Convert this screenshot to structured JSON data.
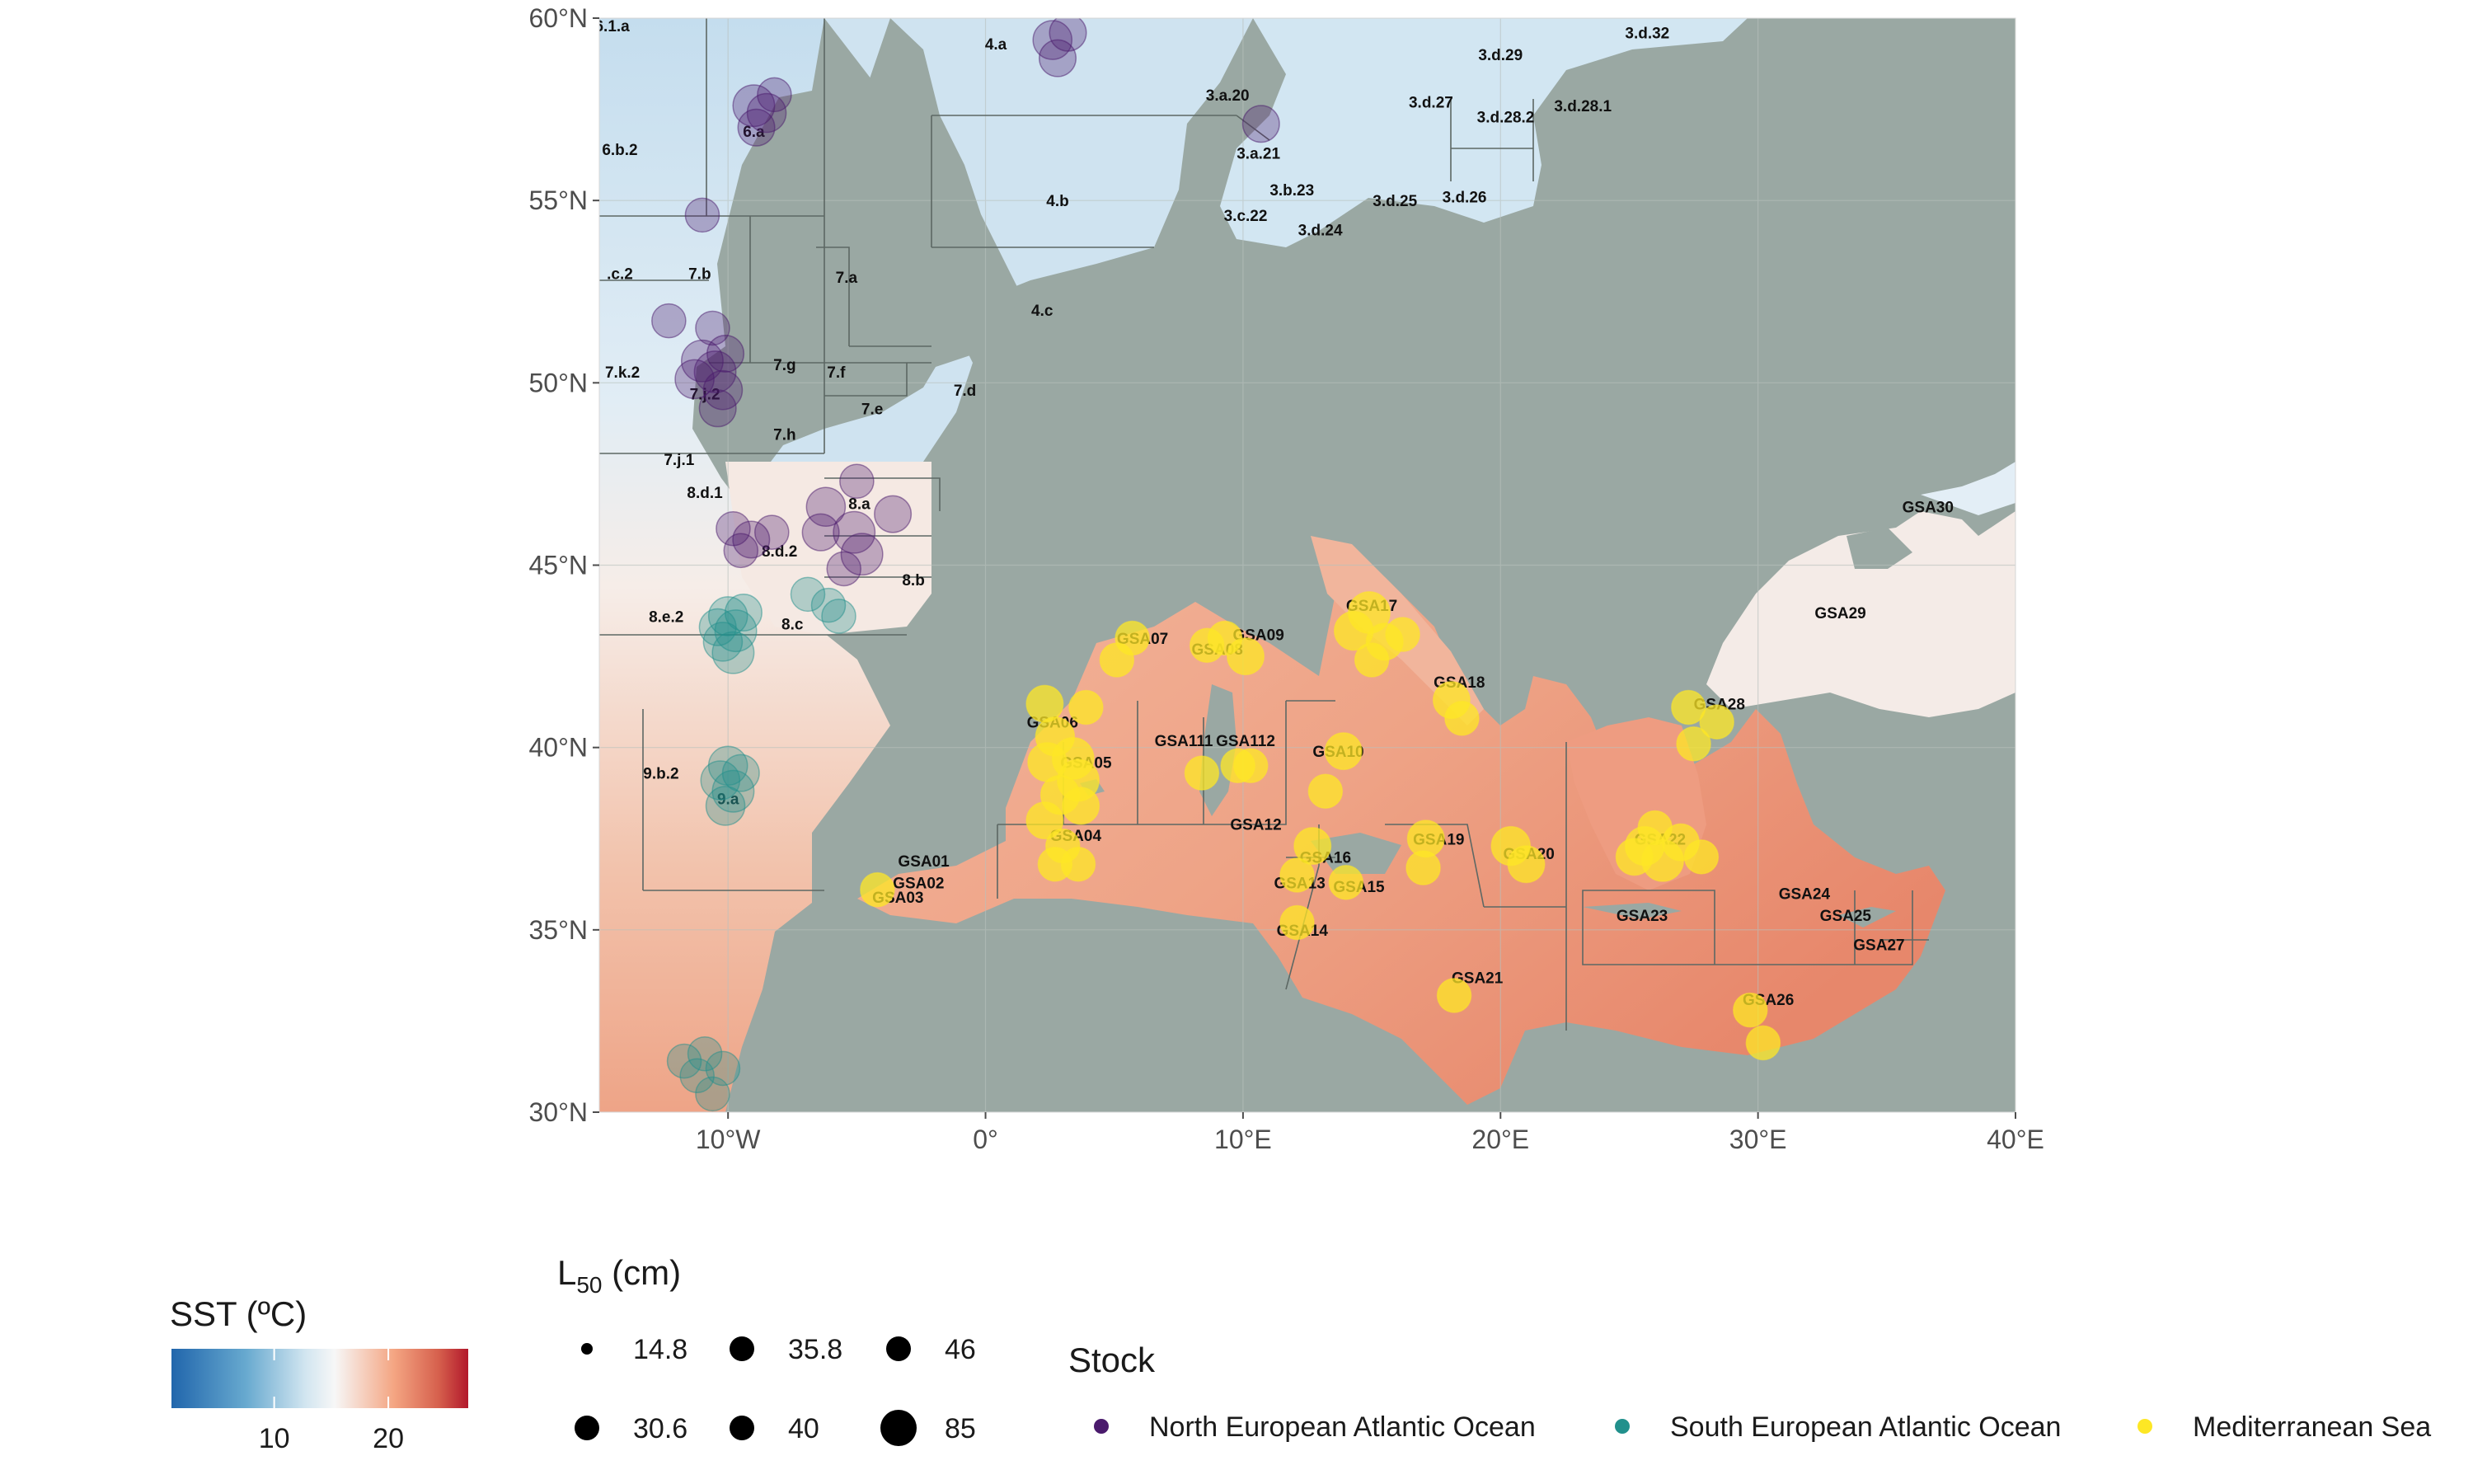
{
  "map": {
    "axes": {
      "lon_ticks": [
        {
          "value": -10,
          "label": "10°W"
        },
        {
          "value": 0,
          "label": "0°"
        },
        {
          "value": 10,
          "label": "10°E"
        },
        {
          "value": 20,
          "label": "20°E"
        },
        {
          "value": 30,
          "label": "30°E"
        },
        {
          "value": 40,
          "label": "40°E"
        }
      ],
      "lat_ticks": [
        {
          "value": 30,
          "label": "30°N"
        },
        {
          "value": 35,
          "label": "35°N"
        },
        {
          "value": 40,
          "label": "40°N"
        },
        {
          "value": 45,
          "label": "45°N"
        },
        {
          "value": 50,
          "label": "50°N"
        },
        {
          "value": 55,
          "label": "55°N"
        },
        {
          "value": 60,
          "label": "60°N"
        }
      ],
      "lon_range": [
        -15,
        40
      ],
      "lat_range": [
        30,
        60
      ]
    },
    "colors": {
      "land": "#9aa8a3",
      "border": "#606b67",
      "cold_sea": "#c9e0ef",
      "mid_sea": "#f4eeea",
      "warm_sea": "#eb9478",
      "north_atlantic": "#4a1a6c",
      "south_atlantic": "#21908c",
      "mediterranean": "#fde725"
    },
    "area_labels": [
      {
        "id": "a1",
        "text": "3.a.20",
        "lon": 9.4,
        "lat": 57.9
      },
      {
        "id": "a2",
        "text": "3.a.21",
        "lon": 10.6,
        "lat": 56.3
      },
      {
        "id": "a3",
        "text": "3.b.23",
        "lon": 11.9,
        "lat": 55.3
      },
      {
        "id": "a4",
        "text": "3.c.22",
        "lon": 10.1,
        "lat": 54.6
      },
      {
        "id": "a5",
        "text": "3.d.24",
        "lon": 13.0,
        "lat": 54.2
      },
      {
        "id": "a6",
        "text": "3.d.25",
        "lon": 15.9,
        "lat": 55.0
      },
      {
        "id": "a7",
        "text": "3.d.26",
        "lon": 18.6,
        "lat": 55.1
      },
      {
        "id": "a8",
        "text": "3.d.27",
        "lon": 17.3,
        "lat": 57.7
      },
      {
        "id": "a9",
        "text": "3.d.28.2",
        "lon": 20.2,
        "lat": 57.3
      },
      {
        "id": "a10",
        "text": "3.d.28.1",
        "lon": 23.2,
        "lat": 57.6
      },
      {
        "id": "a11",
        "text": "3.d.29",
        "lon": 20.0,
        "lat": 59.0
      },
      {
        "id": "a12",
        "text": "3.d.32",
        "lon": 25.7,
        "lat": 59.6
      },
      {
        "id": "a13",
        "text": "4.a",
        "lon": 0.4,
        "lat": 59.3
      },
      {
        "id": "a14",
        "text": "4.b",
        "lon": 2.8,
        "lat": 55.0
      },
      {
        "id": "a15",
        "text": "4.c",
        "lon": 2.2,
        "lat": 52.0
      },
      {
        "id": "a16",
        "text": "6.a",
        "lon": -9.0,
        "lat": 56.9
      },
      {
        "id": "a17",
        "text": "6.b.2",
        "lon": -14.2,
        "lat": 56.4
      },
      {
        "id": "a18",
        "text": "6.1.a",
        "lon": -14.5,
        "lat": 59.8
      },
      {
        "id": "a19",
        "text": ".c.2",
        "lon": -14.2,
        "lat": 53.0
      },
      {
        "id": "a20",
        "text": "7.b",
        "lon": -11.1,
        "lat": 53.0
      },
      {
        "id": "a21",
        "text": "7.a",
        "lon": -5.4,
        "lat": 52.9
      },
      {
        "id": "a22",
        "text": "7.g",
        "lon": -7.8,
        "lat": 50.5
      },
      {
        "id": "a23",
        "text": "7.f",
        "lon": -5.8,
        "lat": 50.3
      },
      {
        "id": "a24",
        "text": "7.e",
        "lon": -4.4,
        "lat": 49.3
      },
      {
        "id": "a25",
        "text": "7.d",
        "lon": -0.8,
        "lat": 49.8
      },
      {
        "id": "a26",
        "text": "7.k.2",
        "lon": -14.1,
        "lat": 50.3
      },
      {
        "id": "a27",
        "text": "7.j.2",
        "lon": -10.9,
        "lat": 49.7
      },
      {
        "id": "a28",
        "text": "7.h",
        "lon": -7.8,
        "lat": 48.6
      },
      {
        "id": "a29",
        "text": "7.j.1",
        "lon": -11.9,
        "lat": 47.9
      },
      {
        "id": "a30",
        "text": "8.d.1",
        "lon": -10.9,
        "lat": 47.0
      },
      {
        "id": "a31",
        "text": "8.a",
        "lon": -4.9,
        "lat": 46.7
      },
      {
        "id": "a32",
        "text": "8.d.2",
        "lon": -8.0,
        "lat": 45.4
      },
      {
        "id": "a33",
        "text": "8.b",
        "lon": -2.8,
        "lat": 44.6
      },
      {
        "id": "a34",
        "text": "8.c",
        "lon": -7.5,
        "lat": 43.4
      },
      {
        "id": "a35",
        "text": "8.e.2",
        "lon": -12.4,
        "lat": 43.6
      },
      {
        "id": "a36",
        "text": "9.b.2",
        "lon": -12.6,
        "lat": 39.3
      },
      {
        "id": "a37",
        "text": "9.a",
        "lon": -10.0,
        "lat": 38.6
      },
      {
        "id": "a38",
        "text": "GSA01",
        "lon": -2.4,
        "lat": 36.9
      },
      {
        "id": "a39",
        "text": "GSA02",
        "lon": -2.6,
        "lat": 36.3
      },
      {
        "id": "a40",
        "text": "GSA03",
        "lon": -3.4,
        "lat": 35.9
      },
      {
        "id": "a41",
        "text": "GSA04",
        "lon": 3.5,
        "lat": 37.6
      },
      {
        "id": "a42",
        "text": "GSA05",
        "lon": 3.9,
        "lat": 39.6
      },
      {
        "id": "a43",
        "text": "GSA06",
        "lon": 2.6,
        "lat": 40.7
      },
      {
        "id": "a44",
        "text": "GSA07",
        "lon": 6.1,
        "lat": 43.0
      },
      {
        "id": "a45",
        "text": "GSA08",
        "lon": 9.0,
        "lat": 42.7
      },
      {
        "id": "a46",
        "text": "GSA09",
        "lon": 10.6,
        "lat": 43.1
      },
      {
        "id": "a47",
        "text": "GSA10",
        "lon": 13.7,
        "lat": 39.9
      },
      {
        "id": "a48",
        "text": "GSA111",
        "lon": 7.7,
        "lat": 40.2
      },
      {
        "id": "a49",
        "text": "GSA112",
        "lon": 10.1,
        "lat": 40.2
      },
      {
        "id": "a50",
        "text": "GSA12",
        "lon": 10.5,
        "lat": 37.9
      },
      {
        "id": "a51",
        "text": "GSA13",
        "lon": 12.2,
        "lat": 36.3
      },
      {
        "id": "a52",
        "text": "GSA14",
        "lon": 12.3,
        "lat": 35.0
      },
      {
        "id": "a53",
        "text": "GSA15",
        "lon": 14.5,
        "lat": 36.2
      },
      {
        "id": "a54",
        "text": "GSA16",
        "lon": 13.2,
        "lat": 37.0
      },
      {
        "id": "a55",
        "text": "GSA17",
        "lon": 15.0,
        "lat": 43.9
      },
      {
        "id": "a56",
        "text": "GSA18",
        "lon": 18.4,
        "lat": 41.8
      },
      {
        "id": "a57",
        "text": "GSA19",
        "lon": 17.6,
        "lat": 37.5
      },
      {
        "id": "a58",
        "text": "GSA20",
        "lon": 21.1,
        "lat": 37.1
      },
      {
        "id": "a59",
        "text": "GSA21",
        "lon": 19.1,
        "lat": 33.7
      },
      {
        "id": "a60",
        "text": "GSA22",
        "lon": 26.2,
        "lat": 37.5
      },
      {
        "id": "a61",
        "text": "GSA23",
        "lon": 25.5,
        "lat": 35.4
      },
      {
        "id": "a62",
        "text": "GSA24",
        "lon": 31.8,
        "lat": 36.0
      },
      {
        "id": "a63",
        "text": "GSA25",
        "lon": 33.4,
        "lat": 35.4
      },
      {
        "id": "a64",
        "text": "GSA26",
        "lon": 30.4,
        "lat": 33.1
      },
      {
        "id": "a65",
        "text": "GSA27",
        "lon": 34.7,
        "lat": 34.6
      },
      {
        "id": "a66",
        "text": "GSA28",
        "lon": 28.5,
        "lat": 41.2
      },
      {
        "id": "a67",
        "text": "GSA29",
        "lon": 33.2,
        "lat": 43.7
      },
      {
        "id": "a68",
        "text": "GSA30",
        "lon": 36.6,
        "lat": 46.6
      }
    ],
    "stock_points": [
      {
        "stock": "north",
        "lon": -9.0,
        "lat": 57.6,
        "size": 46
      },
      {
        "stock": "north",
        "lon": -8.5,
        "lat": 57.4,
        "size": 40
      },
      {
        "stock": "north",
        "lon": -8.9,
        "lat": 57.0,
        "size": 35.8
      },
      {
        "stock": "north",
        "lon": -8.2,
        "lat": 57.9,
        "size": 30.6
      },
      {
        "stock": "north",
        "lon": 2.6,
        "lat": 59.4,
        "size": 40
      },
      {
        "stock": "north",
        "lon": 2.8,
        "lat": 58.9,
        "size": 35.8
      },
      {
        "stock": "north",
        "lon": 3.2,
        "lat": 59.6,
        "size": 35.8
      },
      {
        "stock": "north",
        "lon": 10.7,
        "lat": 57.1,
        "size": 35.8
      },
      {
        "stock": "north",
        "lon": -11.0,
        "lat": 54.6,
        "size": 30.6
      },
      {
        "stock": "north",
        "lon": -12.3,
        "lat": 51.7,
        "size": 30.6
      },
      {
        "stock": "north",
        "lon": -10.6,
        "lat": 51.5,
        "size": 30.6
      },
      {
        "stock": "north",
        "lon": -11.0,
        "lat": 50.6,
        "size": 46
      },
      {
        "stock": "north",
        "lon": -10.5,
        "lat": 50.3,
        "size": 46
      },
      {
        "stock": "north",
        "lon": -11.3,
        "lat": 50.1,
        "size": 40
      },
      {
        "stock": "north",
        "lon": -10.2,
        "lat": 49.8,
        "size": 40
      },
      {
        "stock": "north",
        "lon": -10.1,
        "lat": 50.8,
        "size": 35.8
      },
      {
        "stock": "north",
        "lon": -10.4,
        "lat": 49.3,
        "size": 35.8
      },
      {
        "stock": "north",
        "lon": -6.2,
        "lat": 46.6,
        "size": 40
      },
      {
        "stock": "north",
        "lon": -5.1,
        "lat": 45.9,
        "size": 46
      },
      {
        "stock": "north",
        "lon": -4.8,
        "lat": 45.3,
        "size": 46
      },
      {
        "stock": "north",
        "lon": -6.4,
        "lat": 45.9,
        "size": 35.8
      },
      {
        "stock": "north",
        "lon": -5.0,
        "lat": 47.3,
        "size": 30.6
      },
      {
        "stock": "north",
        "lon": -3.6,
        "lat": 46.4,
        "size": 35.8
      },
      {
        "stock": "north",
        "lon": -5.5,
        "lat": 44.9,
        "size": 30.6
      },
      {
        "stock": "north",
        "lon": -9.8,
        "lat": 46.0,
        "size": 30.6
      },
      {
        "stock": "north",
        "lon": -9.1,
        "lat": 45.7,
        "size": 35.8
      },
      {
        "stock": "north",
        "lon": -9.5,
        "lat": 45.4,
        "size": 30.6
      },
      {
        "stock": "north",
        "lon": -8.3,
        "lat": 45.9,
        "size": 30.6
      },
      {
        "stock": "south",
        "lon": -10.0,
        "lat": 43.6,
        "size": 40
      },
      {
        "stock": "south",
        "lon": -9.7,
        "lat": 43.2,
        "size": 46
      },
      {
        "stock": "south",
        "lon": -10.2,
        "lat": 42.9,
        "size": 40
      },
      {
        "stock": "south",
        "lon": -9.8,
        "lat": 42.6,
        "size": 46
      },
      {
        "stock": "south",
        "lon": -10.4,
        "lat": 43.3,
        "size": 35.8
      },
      {
        "stock": "south",
        "lon": -9.4,
        "lat": 43.7,
        "size": 35.8
      },
      {
        "stock": "south",
        "lon": -6.9,
        "lat": 44.2,
        "size": 30.6
      },
      {
        "stock": "south",
        "lon": -6.1,
        "lat": 43.9,
        "size": 30.6
      },
      {
        "stock": "south",
        "lon": -5.7,
        "lat": 43.6,
        "size": 30.6
      },
      {
        "stock": "south",
        "lon": -10.0,
        "lat": 39.5,
        "size": 40
      },
      {
        "stock": "south",
        "lon": -10.3,
        "lat": 39.1,
        "size": 40
      },
      {
        "stock": "south",
        "lon": -9.8,
        "lat": 38.8,
        "size": 46
      },
      {
        "stock": "south",
        "lon": -10.1,
        "lat": 38.4,
        "size": 40
      },
      {
        "stock": "south",
        "lon": -9.5,
        "lat": 39.3,
        "size": 35.8
      },
      {
        "stock": "south",
        "lon": -11.7,
        "lat": 31.4,
        "size": 30.6
      },
      {
        "stock": "south",
        "lon": -10.9,
        "lat": 31.6,
        "size": 30.6
      },
      {
        "stock": "south",
        "lon": -11.2,
        "lat": 31.0,
        "size": 30.6
      },
      {
        "stock": "south",
        "lon": -10.6,
        "lat": 30.5,
        "size": 30.6
      },
      {
        "stock": "south",
        "lon": -10.2,
        "lat": 31.2,
        "size": 30.6
      },
      {
        "stock": "med",
        "lon": 2.7,
        "lat": 40.3,
        "size": 40
      },
      {
        "stock": "med",
        "lon": 3.4,
        "lat": 39.7,
        "size": 46
      },
      {
        "stock": "med",
        "lon": 2.4,
        "lat": 39.6,
        "size": 40
      },
      {
        "stock": "med",
        "lon": 3.6,
        "lat": 39.1,
        "size": 46
      },
      {
        "stock": "med",
        "lon": 2.9,
        "lat": 38.7,
        "size": 40
      },
      {
        "stock": "med",
        "lon": 3.7,
        "lat": 38.4,
        "size": 35.8
      },
      {
        "stock": "med",
        "lon": 2.3,
        "lat": 41.2,
        "size": 35.8
      },
      {
        "stock": "med",
        "lon": 3.9,
        "lat": 41.1,
        "size": 30.6
      },
      {
        "stock": "med",
        "lon": 2.3,
        "lat": 38.0,
        "size": 35.8
      },
      {
        "stock": "med",
        "lon": 3.0,
        "lat": 37.3,
        "size": 30.6
      },
      {
        "stock": "med",
        "lon": 3.6,
        "lat": 36.8,
        "size": 30.6
      },
      {
        "stock": "med",
        "lon": 2.7,
        "lat": 36.8,
        "size": 30.6
      },
      {
        "stock": "med",
        "lon": 5.1,
        "lat": 42.4,
        "size": 30.6
      },
      {
        "stock": "med",
        "lon": 5.7,
        "lat": 43.0,
        "size": 30.6
      },
      {
        "stock": "med",
        "lon": 9.3,
        "lat": 43.0,
        "size": 30.6
      },
      {
        "stock": "med",
        "lon": 10.1,
        "lat": 42.5,
        "size": 35.8
      },
      {
        "stock": "med",
        "lon": 8.6,
        "lat": 42.8,
        "size": 30.6
      },
      {
        "stock": "med",
        "lon": 14.9,
        "lat": 43.7,
        "size": 46
      },
      {
        "stock": "med",
        "lon": 14.3,
        "lat": 43.2,
        "size": 40
      },
      {
        "stock": "med",
        "lon": 15.5,
        "lat": 42.9,
        "size": 35.8
      },
      {
        "stock": "med",
        "lon": 16.2,
        "lat": 43.1,
        "size": 30.6
      },
      {
        "stock": "med",
        "lon": 15.0,
        "lat": 42.4,
        "size": 30.6
      },
      {
        "stock": "med",
        "lon": 18.1,
        "lat": 41.3,
        "size": 35.8
      },
      {
        "stock": "med",
        "lon": 18.5,
        "lat": 40.8,
        "size": 30.6
      },
      {
        "stock": "med",
        "lon": 13.9,
        "lat": 39.9,
        "size": 35.8
      },
      {
        "stock": "med",
        "lon": 13.2,
        "lat": 38.8,
        "size": 30.6
      },
      {
        "stock": "med",
        "lon": 8.4,
        "lat": 39.3,
        "size": 30.6
      },
      {
        "stock": "med",
        "lon": 9.8,
        "lat": 39.5,
        "size": 30.6
      },
      {
        "stock": "med",
        "lon": 10.3,
        "lat": 39.5,
        "size": 30.6
      },
      {
        "stock": "med",
        "lon": 12.7,
        "lat": 37.3,
        "size": 35.8
      },
      {
        "stock": "med",
        "lon": 12.1,
        "lat": 36.5,
        "size": 30.6
      },
      {
        "stock": "med",
        "lon": 14.0,
        "lat": 36.3,
        "size": 30.6
      },
      {
        "stock": "med",
        "lon": 12.1,
        "lat": 35.2,
        "size": 30.6
      },
      {
        "stock": "med",
        "lon": 17.1,
        "lat": 37.5,
        "size": 35.8
      },
      {
        "stock": "med",
        "lon": 17.0,
        "lat": 36.7,
        "size": 30.6
      },
      {
        "stock": "med",
        "lon": 20.4,
        "lat": 37.3,
        "size": 40
      },
      {
        "stock": "med",
        "lon": 21.0,
        "lat": 36.8,
        "size": 35.8
      },
      {
        "stock": "med",
        "lon": 18.2,
        "lat": 33.2,
        "size": 30.6
      },
      {
        "stock": "med",
        "lon": 25.6,
        "lat": 37.3,
        "size": 40
      },
      {
        "stock": "med",
        "lon": 26.3,
        "lat": 36.9,
        "size": 46
      },
      {
        "stock": "med",
        "lon": 25.2,
        "lat": 37.0,
        "size": 35.8
      },
      {
        "stock": "med",
        "lon": 27.0,
        "lat": 37.4,
        "size": 35.8
      },
      {
        "stock": "med",
        "lon": 27.8,
        "lat": 37.0,
        "size": 30.6
      },
      {
        "stock": "med",
        "lon": 26.0,
        "lat": 37.8,
        "size": 30.6
      },
      {
        "stock": "med",
        "lon": 29.7,
        "lat": 32.8,
        "size": 30.6
      },
      {
        "stock": "med",
        "lon": 30.2,
        "lat": 31.9,
        "size": 30.6
      },
      {
        "stock": "med",
        "lon": 27.3,
        "lat": 41.1,
        "size": 30.6
      },
      {
        "stock": "med",
        "lon": 28.4,
        "lat": 40.7,
        "size": 30.6
      },
      {
        "stock": "med",
        "lon": 27.5,
        "lat": 40.1,
        "size": 30.6
      },
      {
        "stock": "med",
        "lon": -4.2,
        "lat": 36.1,
        "size": 30.6
      }
    ]
  },
  "legend": {
    "sst": {
      "title": "SST (ºC)",
      "ticks": [
        {
          "value": 10,
          "label": "10"
        },
        {
          "value": 20,
          "label": "20"
        }
      ],
      "range": [
        1,
        27
      ]
    },
    "l50": {
      "title_main": "L",
      "title_sub": "50",
      "title_rest": " (cm)",
      "items": [
        {
          "label": "14.8",
          "value": 14.8
        },
        {
          "label": "35.8",
          "value": 35.8
        },
        {
          "label": "46",
          "value": 46
        },
        {
          "label": "30.6",
          "value": 30.6
        },
        {
          "label": "40",
          "value": 40
        },
        {
          "label": "85",
          "value": 85
        }
      ]
    },
    "stock": {
      "title": "Stock",
      "items": [
        {
          "label": "North European Atlantic Ocean",
          "color": "#4a1a6c"
        },
        {
          "label": "South European Atlantic Ocean",
          "color": "#21908c"
        },
        {
          "label": "Mediterranean Sea",
          "color": "#fde725"
        }
      ]
    }
  }
}
